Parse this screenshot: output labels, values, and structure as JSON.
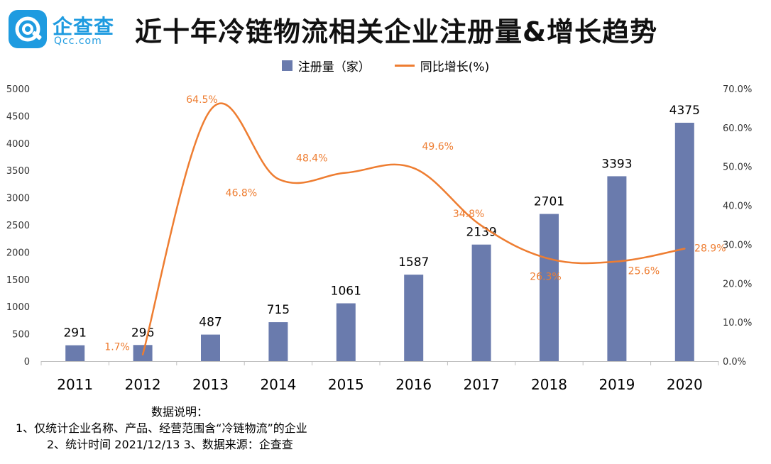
{
  "logo": {
    "cn": "企查查",
    "en": "Qcc.com"
  },
  "title": "近十年冷链物流相关企业注册量&增长趋势",
  "colors": {
    "bar": "#6a7bad",
    "line": "#ee7d31",
    "logo": "#1e9be0"
  },
  "chart_data": {
    "type": "bar",
    "title": "近十年冷链物流相关企业注册量&增长趋势",
    "categories": [
      "2011",
      "2012",
      "2013",
      "2014",
      "2015",
      "2016",
      "2017",
      "2018",
      "2019",
      "2020"
    ],
    "series": [
      {
        "name": "注册量（家）",
        "type": "bar",
        "axis": "left",
        "values": [
          291,
          296,
          487,
          715,
          1061,
          1587,
          2139,
          2701,
          3393,
          4375
        ],
        "labels": [
          "291",
          "296",
          "487",
          "715",
          "1061",
          "1587",
          "2139",
          "2701",
          "3393",
          "4375"
        ]
      },
      {
        "name": "同比增长(%)",
        "type": "line",
        "axis": "right",
        "x": [
          "2012",
          "2013",
          "2014",
          "2015",
          "2016",
          "2017",
          "2018",
          "2019",
          "2020"
        ],
        "values": [
          1.7,
          64.5,
          46.8,
          48.4,
          49.6,
          34.8,
          26.3,
          25.6,
          28.9
        ],
        "labels": [
          "1.7%",
          "64.5%",
          "46.8%",
          "48.4%",
          "49.6%",
          "34.8%",
          "26.3%",
          "25.6%",
          "28.9%"
        ]
      }
    ],
    "left_axis": {
      "ylim": [
        0,
        5000
      ],
      "ticks": [
        "0",
        "500",
        "1000",
        "1500",
        "2000",
        "2500",
        "3000",
        "3500",
        "4000",
        "4500",
        "5000"
      ]
    },
    "right_axis": {
      "ylim": [
        0,
        70
      ],
      "ticks": [
        "0.0%",
        "10.0%",
        "20.0%",
        "30.0%",
        "40.0%",
        "50.0%",
        "60.0%",
        "70.0%"
      ]
    },
    "grid": false,
    "legend": "top-center"
  },
  "notes": {
    "heading": "数据说明：",
    "line1": "1、仅统计企业名称、产品、经营范围含“冷链物流”的企业",
    "line2": "2、统计时间 2021/12/13    3、数据来源：企查查"
  }
}
